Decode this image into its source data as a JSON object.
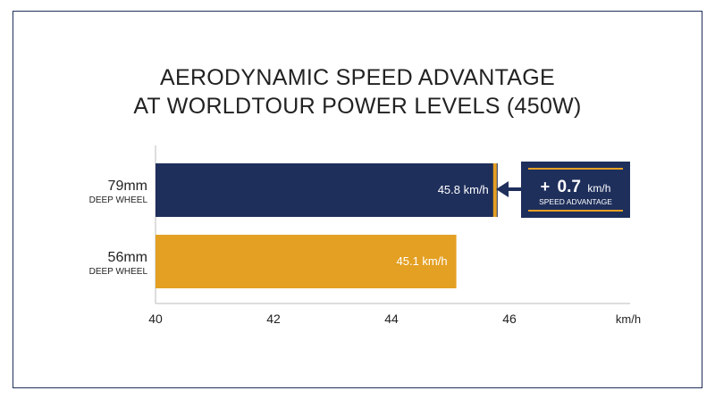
{
  "chart_data": {
    "type": "bar",
    "orientation": "horizontal",
    "title_lines": [
      "AERODYNAMIC SPEED ADVANTAGE",
      "AT WORLDTOUR POWER LEVELS (450W)"
    ],
    "categories": [
      {
        "name": "79mm",
        "sub": "DEEP WHEEL"
      },
      {
        "name": "56mm",
        "sub": "DEEP WHEEL"
      }
    ],
    "values": [
      45.8,
      45.1
    ],
    "value_labels": [
      "45.8 km/h",
      "45.1 km/h"
    ],
    "colors": [
      "#1f2f5c",
      "#e4a023"
    ],
    "accent_color": "#e4a023",
    "xlim": [
      40,
      48
    ],
    "xticks": [
      "40",
      "42",
      "44",
      "46"
    ],
    "xlabel": "km/h",
    "callout": {
      "prefix": "+",
      "value": "0.7",
      "unit": "km/h",
      "caption": "SPEED ADVANTAGE"
    }
  }
}
